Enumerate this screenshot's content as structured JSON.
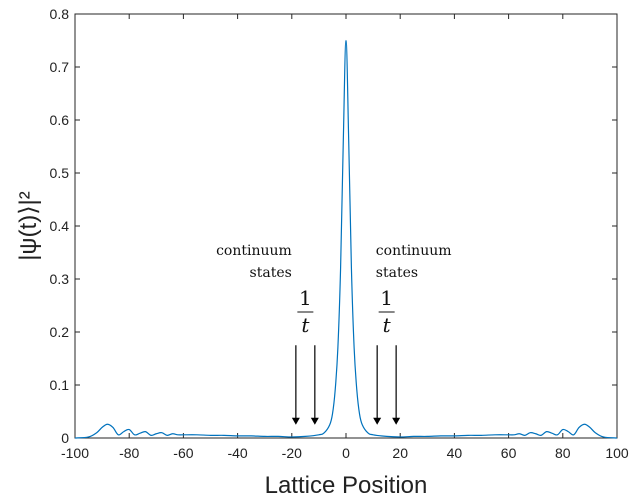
{
  "chart_data": {
    "type": "line",
    "title": "",
    "xlabel": "Lattice Position",
    "ylabel": "|ψ(t)⟩|²",
    "xlim": [
      -100,
      100
    ],
    "ylim": [
      0,
      0.8
    ],
    "xticks": [
      -100,
      -80,
      -60,
      -40,
      -20,
      0,
      20,
      40,
      60,
      80,
      100
    ],
    "yticks": [
      0,
      0.1,
      0.2,
      0.3,
      0.4,
      0.5,
      0.6,
      0.7,
      0.8
    ],
    "grid": false,
    "color": "#0072BD",
    "series": [
      {
        "x": [
          -100,
          -95,
          -92,
          -90,
          -88,
          -86,
          -84,
          -82,
          -80,
          -78,
          -76,
          -74,
          -72,
          -70,
          -68,
          -66,
          -64,
          -62,
          -60,
          -55,
          -50,
          -45,
          -40,
          -35,
          -30,
          -25,
          -20,
          -15,
          -10,
          -8,
          -6,
          -5,
          -4,
          -3,
          -2,
          -1,
          0,
          1,
          2,
          3,
          4,
          5,
          6,
          8,
          10,
          15,
          20,
          25,
          30,
          35,
          40,
          45,
          50,
          55,
          60,
          62,
          64,
          66,
          68,
          70,
          72,
          74,
          76,
          78,
          80,
          82,
          84,
          86,
          88,
          90,
          92,
          95,
          100
        ],
        "y": [
          0,
          0.002,
          0.01,
          0.02,
          0.026,
          0.02,
          0.006,
          0.012,
          0.016,
          0.006,
          0.009,
          0.012,
          0.005,
          0.008,
          0.01,
          0.005,
          0.008,
          0.006,
          0.006,
          0.006,
          0.005,
          0.005,
          0.004,
          0.004,
          0.003,
          0.003,
          0.002,
          0.003,
          0.006,
          0.01,
          0.025,
          0.045,
          0.09,
          0.17,
          0.32,
          0.56,
          0.75,
          0.56,
          0.32,
          0.17,
          0.09,
          0.045,
          0.025,
          0.01,
          0.006,
          0.003,
          0.002,
          0.003,
          0.003,
          0.004,
          0.004,
          0.005,
          0.005,
          0.006,
          0.006,
          0.006,
          0.008,
          0.005,
          0.01,
          0.008,
          0.005,
          0.012,
          0.009,
          0.006,
          0.016,
          0.012,
          0.006,
          0.02,
          0.026,
          0.02,
          0.01,
          0.002,
          0
        ]
      }
    ],
    "annotations": [
      {
        "text": [
          "continuum",
          "states"
        ],
        "align": "right",
        "x": -20,
        "y": 0.345
      },
      {
        "text": [
          "continuum",
          "states"
        ],
        "align": "left",
        "x": 11,
        "y": 0.345
      },
      {
        "numerator": "1",
        "denominator": "t",
        "x": -15,
        "y": 0.285
      },
      {
        "numerator": "1",
        "denominator": "t",
        "x": 15,
        "y": 0.285
      }
    ],
    "arrows": [
      {
        "x": -18.5,
        "y_start": 0.175,
        "y_end": 0.025
      },
      {
        "x": -11.5,
        "y_start": 0.175,
        "y_end": 0.025
      },
      {
        "x": 11.5,
        "y_start": 0.175,
        "y_end": 0.025
      },
      {
        "x": 18.5,
        "y_start": 0.175,
        "y_end": 0.025
      }
    ]
  }
}
